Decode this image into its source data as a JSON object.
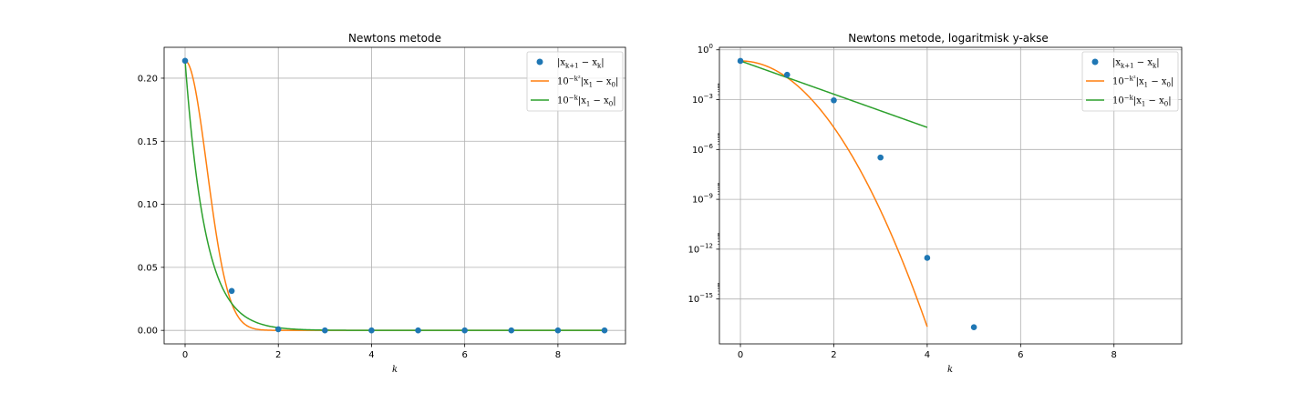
{
  "chart_data": [
    {
      "type": "line",
      "title": "Newtons metode",
      "xlabel": "k",
      "ylabel": "",
      "xlim": [
        -0.45,
        9.45
      ],
      "ylim": [
        -0.0107,
        0.2245
      ],
      "yscale": "linear",
      "grid": true,
      "legend_position": "top-right",
      "xticks": [
        0,
        2,
        4,
        6,
        8
      ],
      "xtick_labels": [
        "0",
        "2",
        "4",
        "6",
        "8"
      ],
      "yticks": [
        0.0,
        0.05,
        0.1,
        0.15,
        0.2
      ],
      "ytick_labels": [
        "0.00",
        "0.05",
        "0.10",
        "0.15",
        "0.20"
      ],
      "series": [
        {
          "name": "|x_{k+1} − x_k|",
          "kind": "scatter",
          "color": "#1f77b4",
          "x": [
            0,
            1,
            2,
            3,
            4,
            5,
            6,
            7,
            8,
            9
          ],
          "y": [
            0.2138,
            0.0313,
            0.000912,
            3.3e-07,
            3e-13,
            2e-17,
            0,
            0,
            0,
            0
          ]
        },
        {
          "name": "10^{−k²}|x_1 − x_0|",
          "kind": "line",
          "color": "#ff7f0e",
          "formula": "0.2138 * 10^(-k^2)",
          "x_range": [
            0,
            9
          ]
        },
        {
          "name": "10^{−k}|x_1 − x_0|",
          "kind": "line",
          "color": "#2ca02c",
          "formula": "0.2138 * 10^(-k)",
          "x_range": [
            0,
            9
          ]
        }
      ]
    },
    {
      "type": "line",
      "title": "Newtons metode, logaritmisk y-akse",
      "xlabel": "k",
      "ylabel": "",
      "xlim": [
        -0.45,
        9.45
      ],
      "ylim_log10": [
        -17.7,
        0.15
      ],
      "yscale": "log",
      "grid": true,
      "legend_position": "top-right",
      "xticks": [
        0,
        2,
        4,
        6,
        8
      ],
      "xtick_labels": [
        "0",
        "2",
        "4",
        "6",
        "8"
      ],
      "yticks_exp": [
        0,
        -3,
        -6,
        -9,
        -12,
        -15
      ],
      "ytick_labels": [
        "0",
        "−3",
        "−6",
        "−9",
        "−12",
        "−15"
      ],
      "series": [
        {
          "name": "|x_{k+1} − x_k|",
          "kind": "scatter",
          "color": "#1f77b4",
          "x": [
            0,
            1,
            2,
            3,
            4,
            5
          ],
          "y": [
            0.2138,
            0.0313,
            0.000912,
            3.3e-07,
            3e-13,
            2e-17
          ]
        },
        {
          "name": "10^{−k²}|x_1 − x_0|",
          "kind": "line",
          "color": "#ff7f0e",
          "formula": "0.2138 * 10^(-k^2)",
          "x_range": [
            0,
            4
          ]
        },
        {
          "name": "10^{−k}|x_1 − x_0|",
          "kind": "line",
          "color": "#2ca02c",
          "formula": "0.2138 * 10^(-k)",
          "x_range": [
            0,
            4
          ]
        }
      ]
    }
  ]
}
